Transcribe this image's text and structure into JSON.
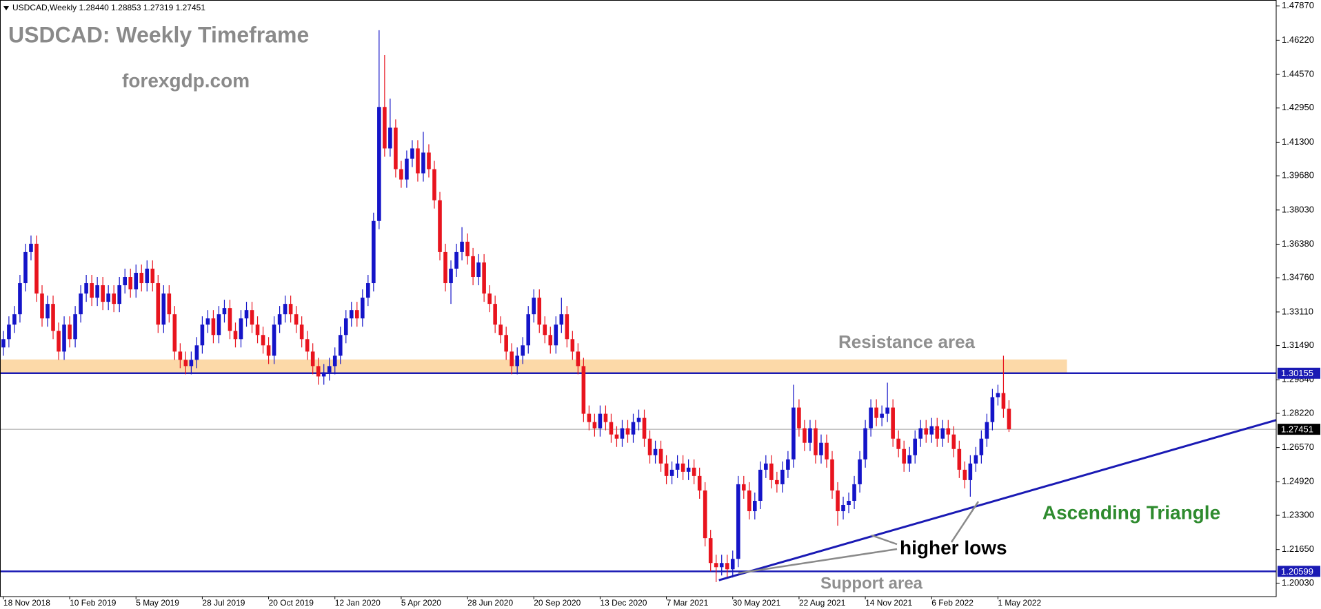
{
  "chart_data": {
    "type": "candlestick",
    "header": "USDCAD,Weekly  1.28440 1.28853 1.27319 1.27451",
    "title": "USDCAD: Weekly Timeframe",
    "subtitle": "forexgdp.com",
    "annotations": {
      "resistance": "Resistance area",
      "support": "Support area",
      "pattern": "Ascending Triangle",
      "lows": "higher lows"
    },
    "up_color": "#1414c8",
    "down_color": "#e8141e",
    "ylim": [
      1.1938,
      1.4816
    ],
    "yticks": [
      {
        "value": 1.4787,
        "label": "1.47870"
      },
      {
        "value": 1.4622,
        "label": "1.46220"
      },
      {
        "value": 1.4457,
        "label": "1.44570"
      },
      {
        "value": 1.4295,
        "label": "1.42950"
      },
      {
        "value": 1.413,
        "label": "1.41300"
      },
      {
        "value": 1.3968,
        "label": "1.39680"
      },
      {
        "value": 1.3803,
        "label": "1.38030"
      },
      {
        "value": 1.3638,
        "label": "1.36380"
      },
      {
        "value": 1.3476,
        "label": "1.34760"
      },
      {
        "value": 1.3311,
        "label": "1.33110"
      },
      {
        "value": 1.3149,
        "label": "1.31490"
      },
      {
        "value": 1.2984,
        "label": "1.29840"
      },
      {
        "value": 1.2822,
        "label": "1.28220"
      },
      {
        "value": 1.2657,
        "label": "1.26570"
      },
      {
        "value": 1.2492,
        "label": "1.24920"
      },
      {
        "value": 1.233,
        "label": "1.23300"
      },
      {
        "value": 1.2165,
        "label": "1.21650"
      },
      {
        "value": 1.2003,
        "label": "1.20030"
      }
    ],
    "categories": [
      "18 Nov 2018",
      null,
      null,
      null,
      null,
      null,
      null,
      null,
      null,
      null,
      null,
      null,
      "10 Feb 2019",
      null,
      null,
      null,
      null,
      null,
      null,
      null,
      null,
      null,
      null,
      null,
      "5 May 2019",
      null,
      null,
      null,
      null,
      null,
      null,
      null,
      null,
      null,
      null,
      null,
      "28 Jul 2019",
      null,
      null,
      null,
      null,
      null,
      null,
      null,
      null,
      null,
      null,
      null,
      "20 Oct 2019",
      null,
      null,
      null,
      null,
      null,
      null,
      null,
      null,
      null,
      null,
      null,
      "12 Jan 2020",
      null,
      null,
      null,
      null,
      null,
      null,
      null,
      null,
      null,
      null,
      null,
      "5 Apr 2020",
      null,
      null,
      null,
      null,
      null,
      null,
      null,
      null,
      null,
      null,
      null,
      "28 Jun 2020",
      null,
      null,
      null,
      null,
      null,
      null,
      null,
      null,
      null,
      null,
      null,
      "20 Sep 2020",
      null,
      null,
      null,
      null,
      null,
      null,
      null,
      null,
      null,
      null,
      null,
      "13 Dec 2020",
      null,
      null,
      null,
      null,
      null,
      null,
      null,
      null,
      null,
      null,
      null,
      "7 Mar 2021",
      null,
      null,
      null,
      null,
      null,
      null,
      null,
      null,
      null,
      null,
      null,
      "30 May 2021",
      null,
      null,
      null,
      null,
      null,
      null,
      null,
      null,
      null,
      null,
      null,
      "22 Aug 2021",
      null,
      null,
      null,
      null,
      null,
      null,
      null,
      null,
      null,
      null,
      null,
      "14 Nov 2021",
      null,
      null,
      null,
      null,
      null,
      null,
      null,
      null,
      null,
      null,
      null,
      "6 Feb 2022",
      null,
      null,
      null,
      null,
      null,
      null,
      null,
      null,
      null,
      null,
      null,
      "1 May 2022",
      null,
      null
    ],
    "open": [
      1.314,
      1.318,
      1.325,
      1.33,
      1.345,
      1.36,
      1.364,
      1.34,
      1.328,
      1.335,
      1.322,
      1.312,
      1.325,
      1.318,
      1.33,
      1.34,
      1.345,
      1.338,
      1.344,
      1.336,
      1.34,
      1.335,
      1.344,
      1.348,
      1.342,
      1.35,
      1.345,
      1.352,
      1.345,
      1.325,
      1.34,
      1.33,
      1.312,
      1.308,
      1.305,
      1.308,
      1.315,
      1.325,
      1.328,
      1.32,
      1.33,
      1.333,
      1.322,
      1.318,
      1.328,
      1.332,
      1.325,
      1.32,
      1.315,
      1.31,
      1.325,
      1.33,
      1.335,
      1.33,
      1.325,
      1.318,
      1.312,
      1.305,
      1.3,
      1.302,
      1.305,
      1.31,
      1.32,
      1.328,
      1.332,
      1.328,
      1.338,
      1.345,
      1.375,
      1.43,
      1.41,
      1.42,
      1.4,
      1.395,
      1.405,
      1.41,
      1.398,
      1.408,
      1.4,
      1.385,
      1.36,
      1.345,
      1.352,
      1.36,
      1.365,
      1.358,
      1.348,
      1.355,
      1.34,
      1.335,
      1.325,
      1.32,
      1.312,
      1.305,
      1.31,
      1.315,
      1.33,
      1.338,
      1.325,
      1.32,
      1.315,
      1.325,
      1.33,
      1.318,
      1.312,
      1.305,
      1.282,
      1.278,
      1.275,
      1.282,
      1.278,
      1.272,
      1.27,
      1.275,
      1.272,
      1.278,
      1.28,
      1.27,
      1.262,
      1.265,
      1.258,
      1.252,
      1.255,
      1.258,
      1.254,
      1.256,
      1.252,
      1.245,
      1.222,
      1.21,
      1.208,
      1.21,
      1.207,
      1.212,
      1.248,
      1.245,
      1.235,
      1.24,
      1.255,
      1.258,
      1.25,
      1.248,
      1.255,
      1.26,
      1.285,
      1.275,
      1.268,
      1.275,
      1.262,
      1.268,
      1.26,
      1.245,
      1.235,
      1.238,
      1.24,
      1.248,
      1.26,
      1.275,
      1.285,
      1.28,
      1.282,
      1.285,
      1.27,
      1.265,
      1.258,
      1.262,
      1.27,
      1.275,
      1.272,
      1.276,
      1.27,
      1.275,
      1.272,
      1.265,
      1.255,
      1.25,
      1.258,
      1.262,
      1.27,
      1.278,
      1.29,
      1.292,
      1.2844
    ],
    "high": [
      1.322,
      1.329,
      1.334,
      1.349,
      1.364,
      1.368,
      1.368,
      1.344,
      1.339,
      1.339,
      1.326,
      1.329,
      1.329,
      1.334,
      1.344,
      1.349,
      1.349,
      1.348,
      1.348,
      1.344,
      1.344,
      1.348,
      1.352,
      1.352,
      1.354,
      1.354,
      1.356,
      1.356,
      1.349,
      1.344,
      1.344,
      1.334,
      1.316,
      1.312,
      1.312,
      1.319,
      1.329,
      1.332,
      1.332,
      1.334,
      1.337,
      1.337,
      1.326,
      1.332,
      1.336,
      1.336,
      1.329,
      1.324,
      1.319,
      1.329,
      1.334,
      1.339,
      1.339,
      1.334,
      1.329,
      1.322,
      1.316,
      1.309,
      1.306,
      1.309,
      1.314,
      1.324,
      1.332,
      1.336,
      1.336,
      1.342,
      1.349,
      1.379,
      1.467,
      1.455,
      1.434,
      1.424,
      1.404,
      1.409,
      1.414,
      1.414,
      1.418,
      1.412,
      1.404,
      1.389,
      1.364,
      1.356,
      1.364,
      1.372,
      1.369,
      1.362,
      1.359,
      1.359,
      1.344,
      1.339,
      1.329,
      1.324,
      1.316,
      1.314,
      1.319,
      1.334,
      1.342,
      1.342,
      1.329,
      1.324,
      1.329,
      1.338,
      1.334,
      1.322,
      1.316,
      1.309,
      1.286,
      1.282,
      1.286,
      1.286,
      1.282,
      1.276,
      1.279,
      1.279,
      1.282,
      1.284,
      1.284,
      1.274,
      1.269,
      1.269,
      1.262,
      1.259,
      1.262,
      1.262,
      1.26,
      1.26,
      1.256,
      1.249,
      1.226,
      1.214,
      1.214,
      1.214,
      1.216,
      1.252,
      1.252,
      1.249,
      1.244,
      1.259,
      1.262,
      1.262,
      1.254,
      1.259,
      1.264,
      1.296,
      1.289,
      1.279,
      1.279,
      1.279,
      1.272,
      1.272,
      1.264,
      1.249,
      1.242,
      1.244,
      1.252,
      1.264,
      1.279,
      1.289,
      1.289,
      1.286,
      1.297,
      1.289,
      1.274,
      1.269,
      1.266,
      1.274,
      1.279,
      1.279,
      1.28,
      1.28,
      1.279,
      1.279,
      1.276,
      1.269,
      1.259,
      1.262,
      1.266,
      1.274,
      1.282,
      1.294,
      1.296,
      1.31,
      1.2885
    ],
    "low": [
      1.31,
      1.314,
      1.321,
      1.326,
      1.341,
      1.356,
      1.336,
      1.324,
      1.324,
      1.318,
      1.308,
      1.308,
      1.314,
      1.314,
      1.326,
      1.336,
      1.334,
      1.334,
      1.332,
      1.332,
      1.331,
      1.331,
      1.34,
      1.338,
      1.338,
      1.341,
      1.341,
      1.341,
      1.321,
      1.321,
      1.326,
      1.308,
      1.304,
      1.301,
      1.301,
      1.304,
      1.311,
      1.321,
      1.316,
      1.316,
      1.326,
      1.318,
      1.314,
      1.314,
      1.324,
      1.321,
      1.316,
      1.311,
      1.306,
      1.306,
      1.321,
      1.326,
      1.326,
      1.321,
      1.314,
      1.308,
      1.301,
      1.296,
      1.296,
      1.298,
      1.301,
      1.306,
      1.316,
      1.324,
      1.324,
      1.324,
      1.334,
      1.341,
      1.371,
      1.406,
      1.406,
      1.396,
      1.391,
      1.391,
      1.401,
      1.394,
      1.394,
      1.396,
      1.381,
      1.356,
      1.341,
      1.335,
      1.348,
      1.356,
      1.354,
      1.344,
      1.344,
      1.336,
      1.331,
      1.321,
      1.316,
      1.308,
      1.301,
      1.301,
      1.306,
      1.311,
      1.326,
      1.321,
      1.316,
      1.311,
      1.311,
      1.321,
      1.314,
      1.308,
      1.301,
      1.278,
      1.274,
      1.271,
      1.271,
      1.274,
      1.268,
      1.266,
      1.266,
      1.268,
      1.268,
      1.274,
      1.266,
      1.258,
      1.258,
      1.254,
      1.248,
      1.248,
      1.251,
      1.25,
      1.25,
      1.248,
      1.241,
      1.218,
      1.206,
      1.2008,
      1.204,
      1.203,
      1.203,
      1.208,
      1.241,
      1.231,
      1.231,
      1.236,
      1.251,
      1.246,
      1.244,
      1.244,
      1.251,
      1.256,
      1.271,
      1.264,
      1.264,
      1.258,
      1.258,
      1.256,
      1.241,
      1.228,
      1.231,
      1.234,
      1.236,
      1.244,
      1.256,
      1.271,
      1.276,
      1.276,
      1.278,
      1.266,
      1.261,
      1.254,
      1.254,
      1.258,
      1.266,
      1.268,
      1.268,
      1.266,
      1.266,
      1.268,
      1.261,
      1.251,
      1.246,
      1.242,
      1.254,
      1.258,
      1.266,
      1.274,
      1.286,
      1.28,
      1.2732
    ],
    "close": [
      1.318,
      1.325,
      1.33,
      1.345,
      1.36,
      1.364,
      1.34,
      1.328,
      1.335,
      1.322,
      1.312,
      1.325,
      1.318,
      1.33,
      1.34,
      1.345,
      1.338,
      1.344,
      1.336,
      1.34,
      1.335,
      1.344,
      1.348,
      1.342,
      1.35,
      1.345,
      1.352,
      1.345,
      1.325,
      1.34,
      1.33,
      1.312,
      1.308,
      1.305,
      1.308,
      1.315,
      1.325,
      1.328,
      1.32,
      1.33,
      1.333,
      1.322,
      1.318,
      1.328,
      1.332,
      1.325,
      1.32,
      1.315,
      1.31,
      1.325,
      1.33,
      1.335,
      1.33,
      1.325,
      1.318,
      1.312,
      1.305,
      1.3,
      1.302,
      1.305,
      1.31,
      1.32,
      1.328,
      1.332,
      1.328,
      1.338,
      1.345,
      1.375,
      1.43,
      1.41,
      1.42,
      1.4,
      1.395,
      1.405,
      1.41,
      1.398,
      1.408,
      1.4,
      1.385,
      1.36,
      1.345,
      1.352,
      1.36,
      1.365,
      1.358,
      1.348,
      1.355,
      1.34,
      1.335,
      1.325,
      1.32,
      1.312,
      1.305,
      1.31,
      1.315,
      1.33,
      1.338,
      1.325,
      1.32,
      1.315,
      1.325,
      1.33,
      1.318,
      1.312,
      1.305,
      1.282,
      1.278,
      1.275,
      1.282,
      1.278,
      1.272,
      1.27,
      1.275,
      1.272,
      1.278,
      1.28,
      1.27,
      1.262,
      1.265,
      1.258,
      1.252,
      1.255,
      1.258,
      1.254,
      1.256,
      1.252,
      1.245,
      1.222,
      1.21,
      1.208,
      1.21,
      1.207,
      1.212,
      1.248,
      1.245,
      1.235,
      1.24,
      1.255,
      1.258,
      1.25,
      1.248,
      1.255,
      1.26,
      1.285,
      1.275,
      1.268,
      1.275,
      1.262,
      1.268,
      1.26,
      1.245,
      1.235,
      1.238,
      1.24,
      1.248,
      1.26,
      1.275,
      1.285,
      1.28,
      1.282,
      1.285,
      1.27,
      1.265,
      1.258,
      1.262,
      1.27,
      1.275,
      1.272,
      1.276,
      1.27,
      1.275,
      1.272,
      1.265,
      1.255,
      1.25,
      1.258,
      1.262,
      1.27,
      1.278,
      1.29,
      1.292,
      1.2844,
      1.27451
    ],
    "levels": [
      {
        "value": 1.30155,
        "color": "#1a1ab4",
        "text_color": "#ffffff"
      },
      {
        "value": 1.20599,
        "color": "#1a1ab4",
        "text_color": "#ffffff"
      },
      {
        "value": 1.27451,
        "color": "#000000",
        "text_color": "#ffffff",
        "line_color": "#a0a0a0"
      }
    ],
    "resistance_zone": {
      "x": [
        -0.6,
        192.5
      ],
      "y": [
        1.3016,
        1.3082
      ],
      "color": "#fcd9a8"
    },
    "trendline": {
      "x": [
        129.5,
        230.4
      ],
      "y": [
        1.2017,
        1.279
      ],
      "color": "#1a1ab4"
    }
  }
}
